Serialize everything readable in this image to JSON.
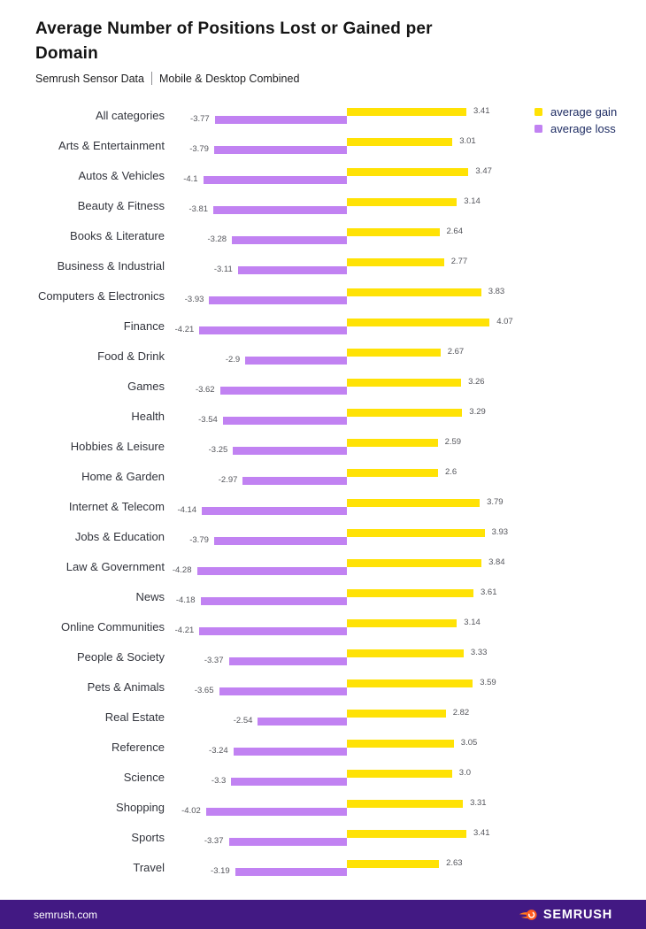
{
  "title": "Average Number of Positions Lost or Gained per Domain",
  "subtitle": {
    "left": "Semrush Sensor Data",
    "right": "Mobile & Desktop Combined"
  },
  "legend": {
    "gain_label": "average gain",
    "loss_label": "average loss"
  },
  "colors": {
    "gain": "#ffe205",
    "loss": "#c182f2",
    "legend_text": "#1f2d64",
    "footer_bg": "#421983",
    "logo_orange": "#ff5b1f"
  },
  "footer": {
    "site": "semrush.com",
    "brand": "SEMRUSH",
    "logo_icon": "semrush-fireball-icon"
  },
  "chart_data": {
    "type": "bar",
    "orientation": "horizontal-diverging",
    "title": "Average Number of Positions Lost or Gained per Domain",
    "subtitle": "Semrush Sensor Data | Mobile & Desktop Combined",
    "xlim": [
      -4.5,
      4.5
    ],
    "grid": false,
    "legend_position": "top-right",
    "categories": [
      "All categories",
      "Arts & Entertainment",
      "Autos & Vehicles",
      "Beauty & Fitness",
      "Books & Literature",
      "Business & Industrial",
      "Computers & Electronics",
      "Finance",
      "Food & Drink",
      "Games",
      "Health",
      "Hobbies & Leisure",
      "Home & Garden",
      "Internet & Telecom",
      "Jobs & Education",
      "Law & Government",
      "News",
      "Online Communities",
      "People & Society",
      "Pets & Animals",
      "Real Estate",
      "Reference",
      "Science",
      "Shopping",
      "Sports",
      "Travel"
    ],
    "series": [
      {
        "name": "average gain",
        "color": "#ffe205",
        "values": [
          3.41,
          3.01,
          3.47,
          3.14,
          2.64,
          2.77,
          3.83,
          4.07,
          2.67,
          3.26,
          3.29,
          2.59,
          2.6,
          3.79,
          3.93,
          3.84,
          3.61,
          3.14,
          3.33,
          3.59,
          2.82,
          3.05,
          3.0,
          3.31,
          3.41,
          2.63
        ],
        "labels": [
          "3.41",
          "3.01",
          "3.47",
          "3.14",
          "2.64",
          "2.77",
          "3.83",
          "4.07",
          "2.67",
          "3.26",
          "3.29",
          "2.59",
          "2.6",
          "3.79",
          "3.93",
          "3.84",
          "3.61",
          "3.14",
          "3.33",
          "3.59",
          "2.82",
          "3.05",
          "3.0",
          "3.31",
          "3.41",
          "2.63"
        ]
      },
      {
        "name": "average loss",
        "color": "#c182f2",
        "values": [
          -3.77,
          -3.79,
          -4.1,
          -3.81,
          -3.28,
          -3.11,
          -3.93,
          -4.21,
          -2.9,
          -3.62,
          -3.54,
          -3.25,
          -2.97,
          -4.14,
          -3.79,
          -4.28,
          -4.18,
          -4.21,
          -3.37,
          -3.65,
          -2.54,
          -3.24,
          -3.3,
          -4.02,
          -3.37,
          -3.19
        ],
        "labels": [
          "-3.77",
          "-3.79",
          "-4.1",
          "-3.81",
          "-3.28",
          "-3.11",
          "-3.93",
          "-4.21",
          "-2.9",
          "-3.62",
          "-3.54",
          "-3.25",
          "-2.97",
          "-4.14",
          "-3.79",
          "-4.28",
          "-4.18",
          "-4.21",
          "-3.37",
          "-3.65",
          "-2.54",
          "-3.24",
          "-3.3",
          "-4.02",
          "-3.37",
          "-3.19"
        ]
      }
    ]
  }
}
